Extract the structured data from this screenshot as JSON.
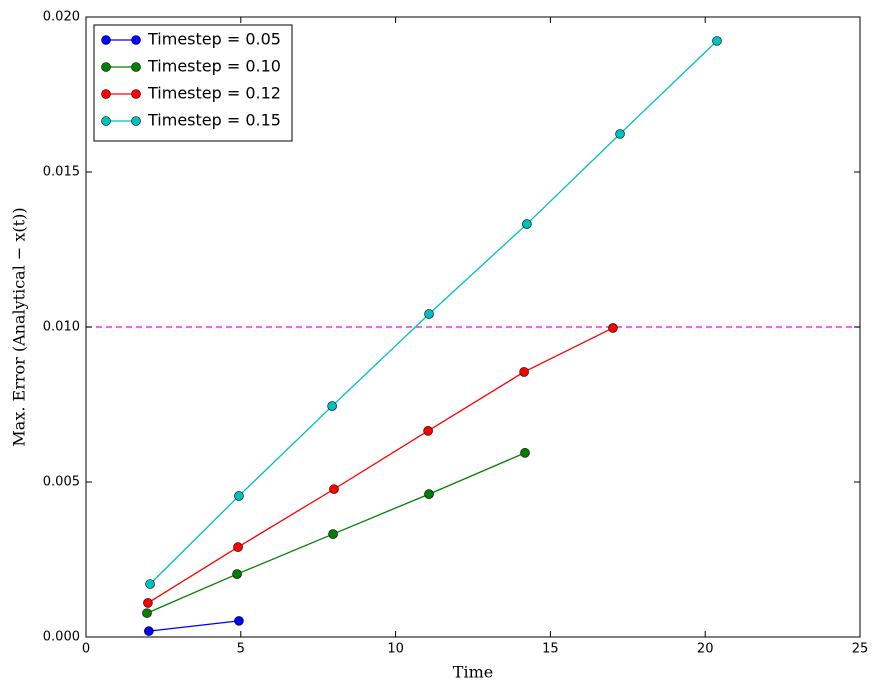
{
  "chart_data": {
    "type": "line",
    "xlabel": "Time",
    "ylabel": "Max. Error (Analytical − x(t))",
    "xlim": [
      0,
      25
    ],
    "xticks": [
      0,
      5,
      10,
      15,
      20,
      25
    ],
    "ylim": [
      0,
      0.02
    ],
    "yticks": [
      {
        "value": 0,
        "label": "0.000"
      },
      {
        "value": 0.005,
        "label": "0.005"
      },
      {
        "value": 0.01,
        "label": "0.010"
      },
      {
        "value": 0.015,
        "label": "0.015"
      },
      {
        "value": 0.02,
        "label": "0.020"
      }
    ],
    "legend": "upper left",
    "reference_line": {
      "y": 0.01,
      "color": "#ff00ff"
    },
    "series": [
      {
        "name": "Timestep = 0.05",
        "color": "#0000ff",
        "x": [
          2.03,
          4.94
        ],
        "values": [
          0.00019,
          0.00052
        ]
      },
      {
        "name": "Timestep = 0.10",
        "color": "#008000",
        "x": [
          1.97,
          4.88,
          7.98,
          11.08,
          14.18
        ],
        "values": [
          0.00077,
          0.00203,
          0.00332,
          0.00461,
          0.00594
        ]
      },
      {
        "name": "Timestep = 0.12",
        "color": "#ff0000",
        "x": [
          2.0,
          4.91,
          8.01,
          11.05,
          14.15,
          17.02
        ],
        "values": [
          0.0011,
          0.0029,
          0.00477,
          0.00665,
          0.00855,
          0.00997
        ]
      },
      {
        "name": "Timestep = 0.15",
        "color": "#00bfbf",
        "x": [
          2.07,
          4.94,
          7.95,
          11.08,
          14.24,
          17.25,
          20.38
        ],
        "values": [
          0.00171,
          0.00455,
          0.00745,
          0.01042,
          0.01332,
          0.01623,
          0.01923
        ]
      }
    ]
  }
}
